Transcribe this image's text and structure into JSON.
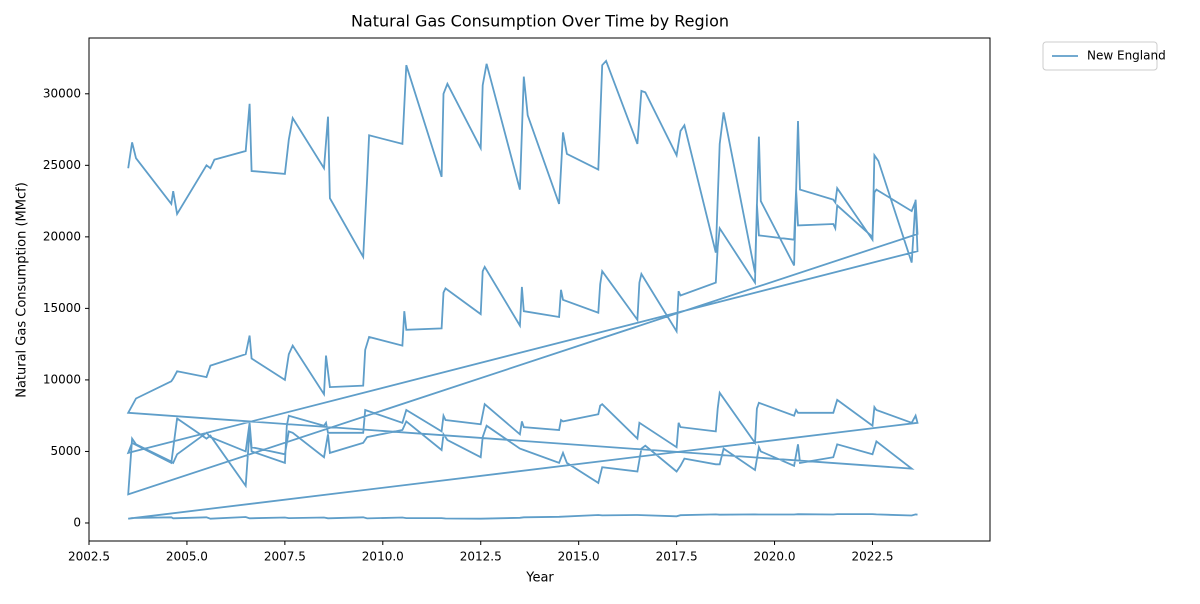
{
  "chart_data": {
    "type": "line",
    "title": "Natural Gas Consumption Over Time by Region",
    "x_label": "Year",
    "y_label": "Natural Gas Consumption (MMcf)",
    "x": [
      2003.5,
      2003.6,
      2003.7,
      2004.6,
      2004.65,
      2004.75,
      2005.5,
      2005.6,
      2005.7,
      2006.5,
      2006.6,
      2006.65,
      2007.5,
      2007.6,
      2007.7,
      2008.5,
      2008.6,
      2008.65,
      2009.5,
      2009.6,
      2009.65,
      2010.5,
      2010.6,
      2011.5,
      2011.55,
      2011.65,
      2012.5,
      2012.55,
      2012.65,
      2013.5,
      2013.6,
      2013.7,
      2014.5,
      2014.6,
      2014.7,
      2015.5,
      2015.6,
      2015.7,
      2016.5,
      2016.6,
      2016.7,
      2017.5,
      2017.6,
      2017.7,
      2018.5,
      2018.6,
      2018.7,
      2019.5,
      2019.6,
      2019.65,
      2020.5,
      2020.6,
      2020.65,
      2021.5,
      2021.55,
      2021.6,
      2022.5,
      2022.55,
      2022.65,
      2023.5,
      2023.6,
      2023.65,
      2003.5,
      2003.6,
      2003.7,
      2004.6,
      2004.65,
      2004.75,
      2005.5,
      2005.6,
      2006.5,
      2006.6,
      2006.65,
      2007.5,
      2007.6,
      2007.7,
      2008.5,
      2008.6,
      2008.65,
      2009.5,
      2009.6,
      2010.5,
      2010.6,
      2011.5,
      2011.55,
      2011.65,
      2012.5,
      2012.55,
      2012.65,
      2013.5,
      2013.6,
      2014.5,
      2014.6,
      2014.7,
      2015.5,
      2015.6,
      2016.5,
      2016.6,
      2016.7,
      2017.5,
      2017.6,
      2017.7,
      2018.5,
      2018.6,
      2018.7,
      2019.5,
      2019.6,
      2019.65,
      2020.5,
      2020.6,
      2020.65,
      2021.5,
      2021.6,
      2022.5,
      2022.6,
      2023.5,
      2003.5,
      2003.7,
      2004.6,
      2004.65,
      2004.75,
      2005.5,
      2005.6,
      2006.5,
      2006.6,
      2006.65,
      2007.5,
      2007.6,
      2007.7,
      2008.5,
      2008.55,
      2008.65,
      2009.5,
      2009.55,
      2009.65,
      2010.5,
      2010.55,
      2010.6,
      2011.5,
      2011.55,
      2011.6,
      2012.5,
      2012.55,
      2012.6,
      2013.5,
      2013.55,
      2013.6,
      2014.5,
      2014.55,
      2014.6,
      2015.5,
      2015.55,
      2015.6,
      2016.5,
      2016.55,
      2016.6,
      2017.5,
      2017.55,
      2017.6,
      2018.5,
      2018.55,
      2018.6,
      2019.5,
      2019.55,
      2019.6,
      2020.5,
      2020.55,
      2020.6,
      2021.5,
      2021.55,
      2021.6,
      2022.5,
      2022.55,
      2022.6,
      2023.5,
      2023.6,
      2023.65,
      2003.5,
      2003.6,
      2004.6,
      2004.75,
      2005.5,
      2005.6,
      2006.5,
      2006.6,
      2006.65,
      2007.5,
      2007.55,
      2007.6,
      2008.5,
      2008.55,
      2008.6,
      2009.5,
      2009.55,
      2010.5,
      2010.6,
      2011.5,
      2011.55,
      2011.6,
      2012.5,
      2012.6,
      2013.5,
      2013.55,
      2013.6,
      2014.5,
      2014.55,
      2014.6,
      2015.5,
      2015.55,
      2015.6,
      2016.5,
      2016.55,
      2017.5,
      2017.55,
      2017.6,
      2018.5,
      2018.55,
      2018.6,
      2019.5,
      2019.55,
      2019.6,
      2020.5,
      2020.55,
      2020.6,
      2021.5,
      2021.6,
      2022.5,
      2022.55,
      2022.6,
      2023.5,
      2023.6,
      2023.65,
      2003.5,
      2003.6,
      2004.6,
      2004.65,
      2005.5,
      2005.6,
      2006.5,
      2006.6,
      2007.5,
      2007.6,
      2008.5,
      2008.6,
      2009.5,
      2009.6,
      2010.5,
      2010.6,
      2011.5,
      2011.6,
      2012.5,
      2013.5,
      2013.6,
      2014.5,
      2015.5,
      2015.6,
      2016.5,
      2017.5,
      2017.6,
      2018.5,
      2018.6,
      2019.5,
      2019.6,
      2020.5,
      2020.6,
      2021.5,
      2021.6,
      2022.5,
      2022.6,
      2023.5,
      2023.6,
      2023.65
    ],
    "series": [
      {
        "name": "New England",
        "color": "#5f9ec9",
        "values": [
          24800,
          26600,
          25500,
          22300,
          23200,
          21600,
          25000,
          24800,
          25400,
          26000,
          29300,
          24600,
          24400,
          26800,
          28300,
          24800,
          28400,
          22700,
          18600,
          24000,
          27100,
          26500,
          32000,
          24200,
          30000,
          30700,
          26200,
          30600,
          32100,
          23300,
          31200,
          28500,
          22300,
          27300,
          25800,
          24700,
          32000,
          32300,
          26500,
          30200,
          30100,
          25700,
          27400,
          27800,
          18900,
          26500,
          28700,
          17500,
          27000,
          22500,
          18000,
          28100,
          23300,
          22600,
          22400,
          23400,
          19800,
          25700,
          25300,
          18200,
          22600,
          20200,
          2000,
          5900,
          5500,
          4300,
          4200,
          4800,
          6300,
          6000,
          5000,
          7000,
          5300,
          4800,
          6400,
          6300,
          4600,
          6200,
          4900,
          5600,
          6000,
          6500,
          7100,
          5100,
          6200,
          5800,
          4600,
          6000,
          6800,
          5200,
          5100,
          4200,
          4900,
          4200,
          2800,
          3900,
          3600,
          5200,
          5400,
          3600,
          4000,
          4500,
          4100,
          4100,
          5200,
          3700,
          5300,
          5000,
          4000,
          5500,
          4200,
          4600,
          5500,
          4800,
          5700,
          3800,
          7700,
          8700,
          9900,
          10100,
          10600,
          10200,
          11000,
          11800,
          13100,
          11500,
          10000,
          11800,
          12400,
          9000,
          11700,
          9500,
          9600,
          12100,
          13000,
          12400,
          14800,
          13500,
          13600,
          16100,
          16400,
          14600,
          17600,
          17900,
          13800,
          16500,
          14800,
          14400,
          16300,
          15600,
          14700,
          16700,
          17600,
          14200,
          16800,
          17400,
          13400,
          16200,
          15900,
          16800,
          19300,
          20600,
          16800,
          22300,
          20100,
          19800,
          23300,
          20800,
          20900,
          20600,
          22200,
          20000,
          23100,
          23300,
          21800,
          22500,
          19000,
          4900,
          5600,
          4200,
          7300,
          5900,
          6100,
          2600,
          6500,
          5000,
          4200,
          6800,
          7500,
          6800,
          7000,
          6300,
          6300,
          7900,
          7000,
          7900,
          6400,
          7500,
          7200,
          6900,
          8300,
          6200,
          7100,
          6700,
          6500,
          7200,
          7100,
          7600,
          8200,
          8300,
          5900,
          7000,
          5300,
          7000,
          6700,
          6400,
          8000,
          9100,
          5600,
          8000,
          8400,
          7500,
          7900,
          7700,
          7700,
          8600,
          6800,
          8100,
          7900,
          7000,
          7500,
          7000,
          300,
          350,
          400,
          330,
          400,
          300,
          420,
          330,
          380,
          340,
          380,
          330,
          400,
          320,
          380,
          340,
          340,
          310,
          300,
          360,
          400,
          430,
          560,
          530,
          560,
          470,
          540,
          600,
          580,
          600,
          590,
          590,
          610,
          590,
          620,
          620,
          600,
          520,
          600,
          580
        ]
      }
    ],
    "xlim": [
      2002.5,
      2025.5
    ],
    "ylim": [
      -1260,
      33900
    ],
    "xticks": [
      2002.5,
      {
        "value": 2005,
        "label": "2005.0"
      },
      2007.5,
      {
        "value": 2010,
        "label": "2010.0"
      },
      2012.5,
      {
        "value": 2015,
        "label": "2015.0"
      },
      2017.5,
      {
        "value": 2020,
        "label": "2020.0"
      },
      2022.5
    ],
    "yticks": [
      0,
      5000,
      10000,
      15000,
      20000,
      25000,
      30000
    ],
    "legend": "outside-upper-right"
  }
}
